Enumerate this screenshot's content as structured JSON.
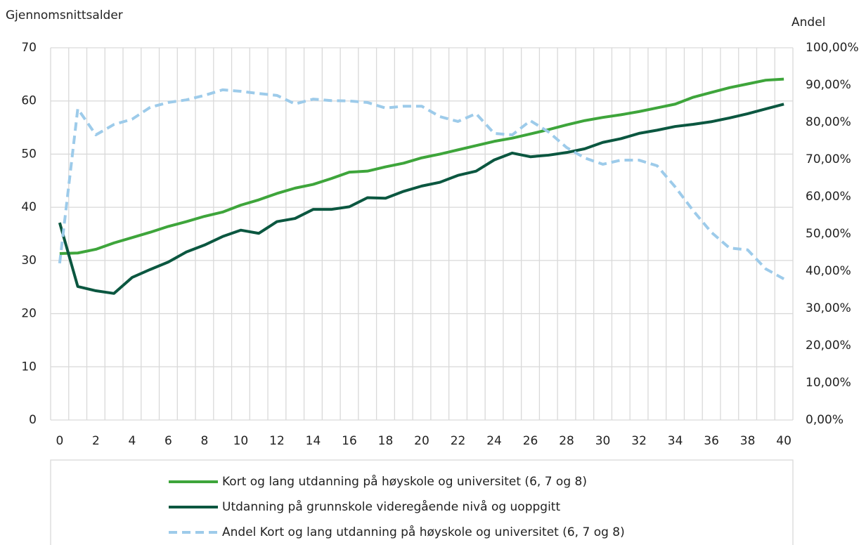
{
  "chart_data": {
    "type": "line",
    "y_label": "Gjennomsnittsalder",
    "y2_label": "Andel",
    "categories": [
      "0",
      null,
      "2",
      null,
      "4",
      null,
      "6",
      null,
      "8",
      null,
      "10",
      null,
      "12",
      null,
      "14",
      null,
      "16",
      null,
      "18",
      null,
      "20",
      null,
      "22",
      null,
      "24",
      null,
      "26",
      null,
      "28",
      null,
      "30",
      null,
      "32",
      null,
      "34",
      null,
      "36",
      null,
      "38",
      null,
      "40"
    ],
    "ylim": [
      0,
      70
    ],
    "yticks": [
      0,
      10,
      20,
      30,
      40,
      50,
      60,
      70
    ],
    "y2lim": [
      0,
      100
    ],
    "y2ticks": [
      {
        "value": 0,
        "label": "0,00%"
      },
      {
        "value": 10,
        "label": "10,00%"
      },
      {
        "value": 20,
        "label": "20,00%"
      },
      {
        "value": 30,
        "label": "30,00%"
      },
      {
        "value": 40,
        "label": "40,00%"
      },
      {
        "value": 50,
        "label": "50,00%"
      },
      {
        "value": 60,
        "label": "60,00%"
      },
      {
        "value": 70,
        "label": "70,00%"
      },
      {
        "value": 80,
        "label": "80,00%"
      },
      {
        "value": 90,
        "label": "90,00%"
      },
      {
        "value": 100,
        "label": "100,00%"
      }
    ],
    "grid": true,
    "legend": "bottom",
    "series": [
      {
        "name": "Kort og lang utdanning på høyskole og universitet (6, 7 og 8)",
        "color": "#3ea53b",
        "dashed": false,
        "values": [
          31.3,
          31.4,
          32.1,
          33.3,
          34.3,
          35.3,
          36.4,
          37.3,
          38.3,
          39.1,
          40.4,
          41.4,
          42.6,
          43.6,
          44.3,
          45.4,
          46.6,
          46.8,
          47.6,
          48.3,
          49.3,
          50.0,
          50.8,
          51.6,
          52.4,
          53.0,
          53.8,
          54.6,
          55.5,
          56.3,
          56.9,
          57.4,
          58.0,
          58.7,
          59.4,
          60.7,
          61.6,
          62.5,
          63.2,
          63.9,
          64.1
        ]
      },
      {
        "name": "Utdanning på grunnskole videregående nivå og uoppgitt",
        "color": "#0b5740",
        "dashed": false,
        "values": [
          37.1,
          25.1,
          24.3,
          23.8,
          26.8,
          28.3,
          29.7,
          31.6,
          32.9,
          34.5,
          35.7,
          35.1,
          37.3,
          37.9,
          39.6,
          39.6,
          40.1,
          41.8,
          41.7,
          43.0,
          44.0,
          44.7,
          46.0,
          46.8,
          48.9,
          50.2,
          49.5,
          49.8,
          50.3,
          51.0,
          52.2,
          52.9,
          53.9,
          54.5,
          55.2,
          55.6,
          56.1,
          56.8,
          57.6,
          58.5,
          59.4
        ]
      },
      {
        "name": "Andel Kort og lang utdanning på høyskole og universitet (6, 7 og 8)",
        "color": "#9dcbea",
        "dashed": true,
        "axis": "y2",
        "values": [
          42.1,
          83.6,
          76.6,
          79.4,
          80.8,
          84.0,
          85.3,
          86.0,
          87.2,
          88.7,
          88.3,
          87.7,
          87.2,
          84.9,
          86.2,
          85.8,
          85.7,
          85.3,
          83.8,
          84.3,
          84.3,
          81.5,
          80.2,
          82.3,
          77.0,
          76.6,
          80.4,
          77.4,
          73.2,
          70.4,
          68.7,
          69.8,
          69.8,
          68.3,
          62.6,
          56.2,
          50.4,
          46.2,
          45.7,
          40.6,
          37.9
        ]
      }
    ]
  }
}
